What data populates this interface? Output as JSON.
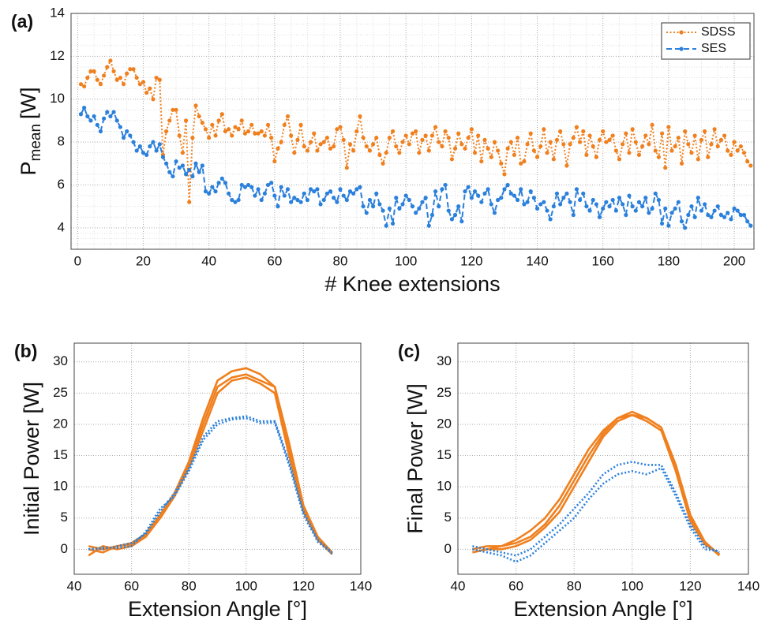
{
  "chart_data": [
    {
      "type": "line",
      "label": "(a)",
      "xlabel": "# Knee extensions",
      "ylabel": "P",
      "ylabel_sub": "mean",
      "ylabel_unit": "[W]",
      "x": [
        1,
        2,
        3,
        4,
        5,
        6,
        7,
        8,
        9,
        10,
        11,
        12,
        13,
        14,
        15,
        16,
        17,
        18,
        19,
        20,
        21,
        22,
        23,
        24,
        25,
        26,
        27,
        28,
        29,
        30,
        31,
        32,
        33,
        34,
        35,
        36,
        37,
        38,
        39,
        40,
        41,
        42,
        43,
        44,
        45,
        46,
        47,
        48,
        49,
        50,
        51,
        52,
        53,
        54,
        55,
        56,
        57,
        58,
        59,
        60,
        61,
        62,
        63,
        64,
        65,
        66,
        67,
        68,
        69,
        70,
        71,
        72,
        73,
        74,
        75,
        76,
        77,
        78,
        79,
        80,
        81,
        82,
        83,
        84,
        85,
        86,
        87,
        88,
        89,
        90,
        91,
        92,
        93,
        94,
        95,
        96,
        97,
        98,
        99,
        100,
        101,
        102,
        103,
        104,
        105,
        106,
        107,
        108,
        109,
        110,
        111,
        112,
        113,
        114,
        115,
        116,
        117,
        118,
        119,
        120,
        121,
        122,
        123,
        124,
        125,
        126,
        127,
        128,
        129,
        130,
        131,
        132,
        133,
        134,
        135,
        136,
        137,
        138,
        139,
        140,
        141,
        142,
        143,
        144,
        145,
        146,
        147,
        148,
        149,
        150,
        151,
        152,
        153,
        154,
        155,
        156,
        157,
        158,
        159,
        160,
        161,
        162,
        163,
        164,
        165,
        166,
        167,
        168,
        169,
        170,
        171,
        172,
        173,
        174,
        175,
        176,
        177,
        178,
        179,
        180,
        181,
        182,
        183,
        184,
        185,
        186,
        187,
        188,
        189,
        190,
        191,
        192,
        193,
        194,
        195,
        196,
        197,
        198,
        199,
        200,
        201,
        202,
        203,
        204,
        205
      ],
      "xlim": [
        -2,
        206
      ],
      "ylim": [
        3,
        14
      ],
      "xticks": [
        0,
        20,
        40,
        60,
        80,
        100,
        120,
        140,
        160,
        180,
        200
      ],
      "yticks": [
        4,
        6,
        8,
        10,
        12,
        14
      ],
      "grid": true,
      "minor_grid": true,
      "legend": "upper right",
      "series": [
        {
          "name": "SDSS",
          "color": "#f0801e",
          "style": "dotted",
          "marker": true,
          "values": [
            10.7,
            10.6,
            11.0,
            11.3,
            11.3,
            10.9,
            10.7,
            11.1,
            11.5,
            11.8,
            11.3,
            10.9,
            11.0,
            10.7,
            11.2,
            11.4,
            11.4,
            11.0,
            10.7,
            10.8,
            10.3,
            10.5,
            10.0,
            11.0,
            10.9,
            7.4,
            8.5,
            9.0,
            9.5,
            9.5,
            8.3,
            7.5,
            9.0,
            5.2,
            8.2,
            9.7,
            9.2,
            8.9,
            8.6,
            8.2,
            8.8,
            8.3,
            9.0,
            9.3,
            8.5,
            8.6,
            8.3,
            8.7,
            8.6,
            9.0,
            8.4,
            8.5,
            8.8,
            8.4,
            8.4,
            8.5,
            8.3,
            8.8,
            8.2,
            7.1,
            7.7,
            8.0,
            8.8,
            9.2,
            8.3,
            7.5,
            8.1,
            8.8,
            7.8,
            7.6,
            8.0,
            8.4,
            7.6,
            7.9,
            8.0,
            8.2,
            7.7,
            7.8,
            8.6,
            8.7,
            8.1,
            6.8,
            7.9,
            7.6,
            8.5,
            9.2,
            8.2,
            7.8,
            7.6,
            7.9,
            8.2,
            7.4,
            7.0,
            7.5,
            8.2,
            8.5,
            7.8,
            7.5,
            8.0,
            8.3,
            7.9,
            8.4,
            8.5,
            7.5,
            8.1,
            8.3,
            7.6,
            8.3,
            8.7,
            8.0,
            7.8,
            8.5,
            8.2,
            7.2,
            7.7,
            8.4,
            7.9,
            7.7,
            8.2,
            8.6,
            7.5,
            8.3,
            7.1,
            8.1,
            7.7,
            7.3,
            8.0,
            7.6,
            7.0,
            6.5,
            7.7,
            8.0,
            7.4,
            8.2,
            7.0,
            7.1,
            7.9,
            8.4,
            7.6,
            7.3,
            7.8,
            8.6,
            7.5,
            8.0,
            7.2,
            8.1,
            8.5,
            7.9,
            6.9,
            7.9,
            8.2,
            8.7,
            8.0,
            8.5,
            7.4,
            8.3,
            7.8,
            7.3,
            8.1,
            8.5,
            8.0,
            8.1,
            8.3,
            7.6,
            7.2,
            7.9,
            8.4,
            7.5,
            8.6,
            8.0,
            7.4,
            7.8,
            8.3,
            7.9,
            8.8,
            7.6,
            7.3,
            8.4,
            6.8,
            8.7,
            7.6,
            7.8,
            8.2,
            7.0,
            8.5,
            7.9,
            7.5,
            8.3,
            7.2,
            8.1,
            8.5,
            7.3,
            7.9,
            8.6,
            7.8,
            8.1,
            8.3,
            7.6,
            7.4,
            8.0,
            7.6,
            7.8,
            7.5,
            7.1,
            6.9
          ]
        },
        {
          "name": "SES",
          "color": "#2b80dc",
          "style": "dashed",
          "marker": true,
          "values": [
            9.3,
            9.6,
            9.2,
            9.0,
            9.2,
            8.8,
            8.5,
            9.1,
            9.4,
            9.2,
            9.4,
            9.0,
            8.7,
            8.2,
            8.5,
            8.3,
            8.0,
            7.6,
            7.8,
            7.5,
            7.4,
            7.8,
            8.0,
            7.6,
            7.9,
            7.3,
            7.0,
            6.6,
            6.4,
            7.1,
            6.8,
            6.9,
            6.5,
            6.7,
            6.4,
            7.0,
            6.6,
            6.9,
            5.7,
            5.6,
            5.9,
            5.7,
            6.1,
            6.3,
            6.1,
            5.6,
            5.3,
            5.2,
            5.3,
            6.0,
            5.9,
            6.0,
            5.9,
            5.5,
            5.8,
            5.3,
            5.6,
            6.0,
            6.1,
            5.5,
            5.0,
            5.9,
            5.5,
            5.8,
            5.2,
            5.4,
            5.3,
            5.2,
            5.6,
            5.3,
            5.8,
            5.7,
            5.8,
            5.1,
            5.3,
            5.6,
            5.7,
            5.4,
            5.2,
            5.8,
            5.5,
            5.3,
            5.7,
            5.6,
            5.8,
            5.9,
            5.0,
            4.7,
            5.3,
            5.0,
            5.6,
            5.1,
            4.8,
            4.1,
            4.9,
            4.2,
            5.4,
            4.9,
            5.1,
            5.5,
            5.3,
            5.0,
            4.7,
            4.9,
            5.2,
            5.4,
            4.1,
            4.6,
            5.7,
            5.0,
            5.8,
            6.0,
            4.8,
            4.4,
            4.6,
            5.0,
            4.3,
            5.7,
            5.9,
            5.4,
            5.7,
            5.5,
            5.2,
            5.6,
            5.8,
            5.1,
            4.7,
            5.3,
            5.4,
            5.8,
            6.0,
            5.6,
            5.5,
            5.3,
            5.8,
            5.1,
            5.2,
            5.7,
            5.4,
            4.9,
            5.1,
            5.2,
            4.8,
            4.4,
            5.0,
            5.6,
            5.1,
            5.4,
            5.6,
            5.2,
            4.6,
            5.8,
            5.3,
            5.6,
            5.0,
            4.8,
            5.3,
            5.1,
            4.5,
            4.9,
            5.2,
            5.0,
            5.3,
            4.8,
            5.4,
            5.1,
            4.6,
            5.5,
            5.0,
            4.8,
            5.2,
            5.0,
            5.4,
            4.7,
            4.9,
            5.6,
            5.3,
            4.2,
            4.9,
            4.1,
            4.7,
            4.9,
            5.2,
            4.3,
            4.0,
            4.6,
            5.0,
            4.5,
            5.4,
            4.8,
            5.1,
            4.6,
            4.5,
            4.8,
            5.0,
            4.6,
            4.5,
            4.7,
            4.4,
            4.9,
            4.8,
            4.6,
            4.6,
            4.3,
            4.1
          ]
        }
      ]
    },
    {
      "type": "line",
      "label": "(b)",
      "xlabel": "Extension Angle [°]",
      "ylabel": "Initial Power [W]",
      "x": [
        45,
        50,
        55,
        60,
        65,
        70,
        75,
        80,
        85,
        90,
        95,
        100,
        105,
        110,
        115,
        120,
        125,
        130
      ],
      "xlim": [
        40,
        140
      ],
      "ylim": [
        -4,
        33
      ],
      "xticks": [
        40,
        60,
        80,
        100,
        120,
        140
      ],
      "yticks": [
        0,
        5,
        10,
        15,
        20,
        25,
        30
      ],
      "grid": true,
      "series": [
        {
          "color": "#f0801e",
          "style": "solid",
          "values": [
            0.5,
            0,
            0.5,
            1,
            2.5,
            5.5,
            9,
            14,
            21,
            27,
            28.5,
            29,
            28,
            26,
            17,
            7,
            2,
            -0.5
          ]
        },
        {
          "color": "#f0801e",
          "style": "solid",
          "values": [
            -1,
            0.5,
            0,
            0.5,
            2,
            5,
            8.5,
            13,
            19,
            25,
            27,
            27.5,
            26.5,
            25,
            15,
            6,
            1.5,
            -0.8
          ]
        },
        {
          "color": "#f0801e",
          "style": "solid",
          "values": [
            0,
            -0.5,
            0.5,
            0.8,
            2.2,
            5,
            8.5,
            13.5,
            20,
            26,
            27.5,
            28,
            27,
            26,
            16,
            6.5,
            1.8,
            -0.6
          ]
        },
        {
          "color": "#2b80dc",
          "style": "dotted",
          "values": [
            0,
            0,
            0.5,
            1,
            2.5,
            6,
            9,
            13,
            18,
            20.5,
            21,
            21.3,
            20.5,
            20.5,
            14,
            6,
            1.5,
            -0.5
          ]
        },
        {
          "color": "#2b80dc",
          "style": "dotted",
          "values": [
            0,
            0.3,
            0.2,
            0.5,
            2.8,
            6.5,
            8.5,
            12.5,
            17.5,
            20,
            20.8,
            21,
            20.2,
            20.3,
            13.5,
            5.5,
            1.2,
            -0.7
          ]
        }
      ]
    },
    {
      "type": "line",
      "label": "(c)",
      "xlabel": "Extension Angle [°]",
      "ylabel": "Final Power [W]",
      "x": [
        45,
        50,
        55,
        60,
        65,
        70,
        75,
        80,
        85,
        90,
        95,
        100,
        105,
        110,
        115,
        120,
        125,
        130
      ],
      "xlim": [
        40,
        140
      ],
      "ylim": [
        -4,
        33
      ],
      "xticks": [
        40,
        60,
        80,
        100,
        120,
        140
      ],
      "yticks": [
        0,
        5,
        10,
        15,
        20,
        25,
        30
      ],
      "grid": true,
      "series": [
        {
          "color": "#f0801e",
          "style": "solid",
          "values": [
            -0.5,
            0,
            0.5,
            1,
            2,
            4,
            7,
            11,
            15,
            18.5,
            21,
            22,
            21,
            19.5,
            13,
            5,
            1,
            -1
          ]
        },
        {
          "color": "#f0801e",
          "style": "solid",
          "values": [
            0,
            0.5,
            0.5,
            1.5,
            3,
            5,
            8,
            12,
            16,
            19,
            21,
            21.5,
            20.5,
            19,
            12.5,
            4.5,
            0.8,
            -0.8
          ]
        },
        {
          "color": "#f0801e",
          "style": "solid",
          "values": [
            -0.5,
            0,
            0,
            0.5,
            1.5,
            3.5,
            6,
            10,
            14,
            18,
            20.5,
            21.5,
            21,
            19.5,
            13.5,
            5.5,
            1.2,
            -0.9
          ]
        },
        {
          "color": "#2b80dc",
          "style": "dotted",
          "values": [
            0.5,
            0,
            -0.5,
            -1,
            0,
            2,
            4,
            6.5,
            9,
            12,
            13.5,
            14,
            13.5,
            13.5,
            9,
            4,
            0.5,
            -0.5
          ]
        },
        {
          "color": "#2b80dc",
          "style": "dotted",
          "values": [
            0,
            -0.5,
            -1,
            -2,
            -1,
            1,
            3,
            5,
            8,
            10.5,
            12,
            12.5,
            12,
            13,
            8.5,
            3.5,
            0,
            -0.3
          ]
        }
      ]
    }
  ]
}
